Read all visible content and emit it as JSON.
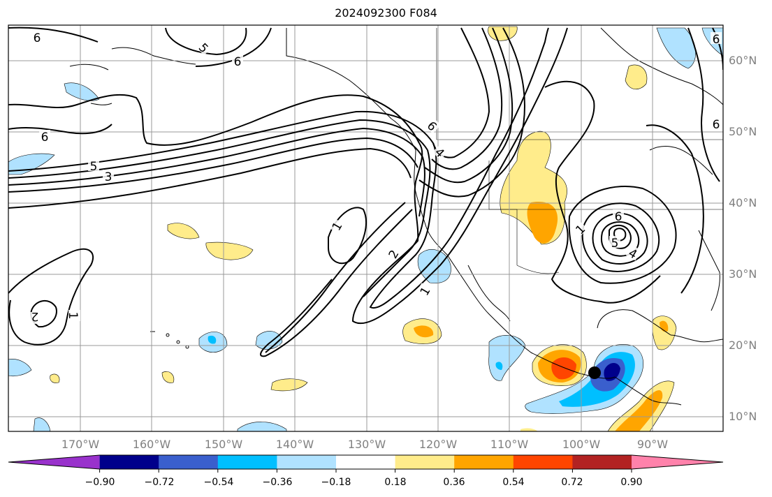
{
  "title": "2024092300 F084",
  "lon_labels": [
    "170°W",
    "160°W",
    "150°W",
    "140°W",
    "130°W",
    "120°W",
    "110°W",
    "100°W",
    "90°W"
  ],
  "lat_labels": [
    "60°N",
    "50°N",
    "40°N",
    "30°N",
    "20°N",
    "10°N"
  ],
  "contour_labels": [
    "6",
    "5",
    "6",
    "6",
    "5",
    "3",
    "6",
    "4",
    "1",
    "2",
    "1",
    "2",
    "1",
    "1",
    "5",
    "6",
    "4",
    "6",
    "6"
  ],
  "colorbar": {
    "ticks": [
      "−0.90",
      "−0.72",
      "−0.54",
      "−0.36",
      "−0.18",
      "0.18",
      "0.36",
      "0.54",
      "0.72",
      "0.90"
    ],
    "colors": [
      "#9932cc",
      "#00008b",
      "#3a5fcd",
      "#00bfff",
      "#b0e2ff",
      "#ffffff",
      "#ffec8b",
      "#ffa500",
      "#ff4500",
      "#b22222",
      "#ff82ab"
    ]
  },
  "storm_marker": {
    "label": "storm-center"
  }
}
